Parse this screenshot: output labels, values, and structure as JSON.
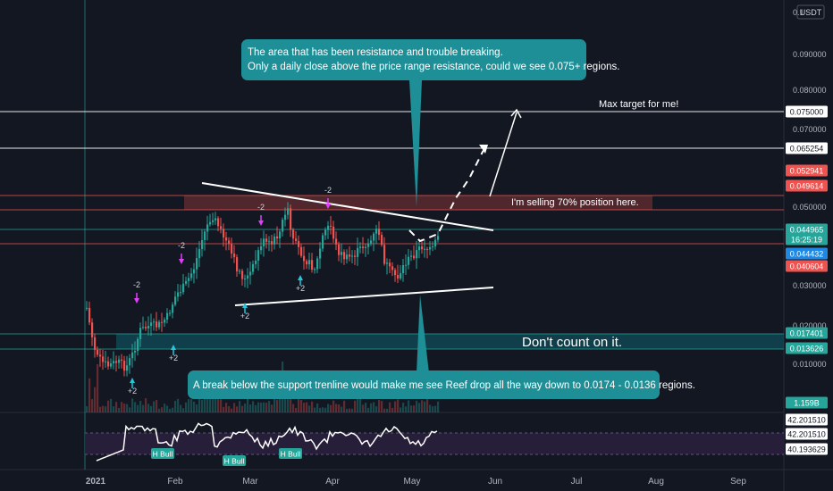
{
  "colors": {
    "background": "#131722",
    "up_candle": "#26a69a",
    "down_candle": "#ef5350",
    "callout_bg": "#1e8f96",
    "support_zone": "#0f5f6b",
    "resistance_zone": "#5c2a2e",
    "trendline": "#ffffff",
    "rsi_line": "#ffffff",
    "rsi_band": "#2a1f3d"
  },
  "header": {
    "currency_button": "USDT"
  },
  "annotations": {
    "top_callout_line1": "The area that has been resistance and trouble breaking.",
    "top_callout_line2": "Only a daily close above the price range resistance, could we see 0.075+ regions.",
    "bottom_callout": "A break below the support trenline would make me see Reef drop all the way down to 0.0174 - 0.0136 regions.",
    "max_target": "Max target for me!",
    "selling_note": "I'm selling 70% position here.",
    "dont_count": "Don't count on it."
  },
  "chart_data": {
    "type": "candlestick",
    "quote_currency": "USDT",
    "x_axis_labels": [
      "2021",
      "Feb",
      "Mar",
      "Apr",
      "May",
      "Jun",
      "Jul",
      "Aug",
      "Sep"
    ],
    "y_axis_ticks": [
      "0.090000",
      "0.080000",
      "0.070000",
      "0.050000",
      "0.030000",
      "0.020000",
      "0.010000"
    ],
    "y_axis_top_partial": "0.1",
    "price_tags": [
      {
        "value": "0.075000",
        "color": "#ffffff",
        "text_color": "#131722"
      },
      {
        "value": "0.065254",
        "color": "#ffffff",
        "text_color": "#131722"
      },
      {
        "value": "0.052941",
        "color": "#ef5350",
        "text_color": "#ffffff"
      },
      {
        "value": "0.049614",
        "color": "#ef5350",
        "text_color": "#ffffff"
      },
      {
        "value": "0.044965",
        "color": "#26a69a",
        "text_color": "#ffffff"
      },
      {
        "value": "16:25:19",
        "color": "#26a69a",
        "text_color": "#ffffff"
      },
      {
        "value": "0.044432",
        "color": "#1e88e5",
        "text_color": "#ffffff"
      },
      {
        "value": "0.040604",
        "color": "#ef5350",
        "text_color": "#ffffff"
      },
      {
        "value": "0.017401",
        "color": "#26a69a",
        "text_color": "#ffffff"
      },
      {
        "value": "0.013626",
        "color": "#26a69a",
        "text_color": "#ffffff"
      },
      {
        "value": "1.159B",
        "color": "#26a69a",
        "text_color": "#ffffff"
      }
    ],
    "rsi_tags": [
      {
        "value": "42.201510",
        "color": "#ffffff",
        "text_color": "#131722"
      },
      {
        "value": "42.201510",
        "color": "#ffffff",
        "text_color": "#131722"
      },
      {
        "value": "40.193629",
        "color": "#ffffff",
        "text_color": "#131722"
      }
    ],
    "horizontal_levels": [
      0.075,
      0.065254,
      0.052941,
      0.049614,
      0.044965,
      0.040604,
      0.017401,
      0.013626
    ],
    "signal_labels": [
      {
        "text": "-2",
        "kind": "sell"
      },
      {
        "text": "-2",
        "kind": "sell"
      },
      {
        "text": "-2",
        "kind": "sell"
      },
      {
        "text": "-2",
        "kind": "sell"
      },
      {
        "text": "+2",
        "kind": "buy"
      },
      {
        "text": "+2",
        "kind": "buy"
      },
      {
        "text": "+2",
        "kind": "buy"
      },
      {
        "text": "+2",
        "kind": "buy"
      }
    ],
    "rsi_labels": [
      "H Bull",
      "H Bull",
      "H Bull"
    ]
  }
}
